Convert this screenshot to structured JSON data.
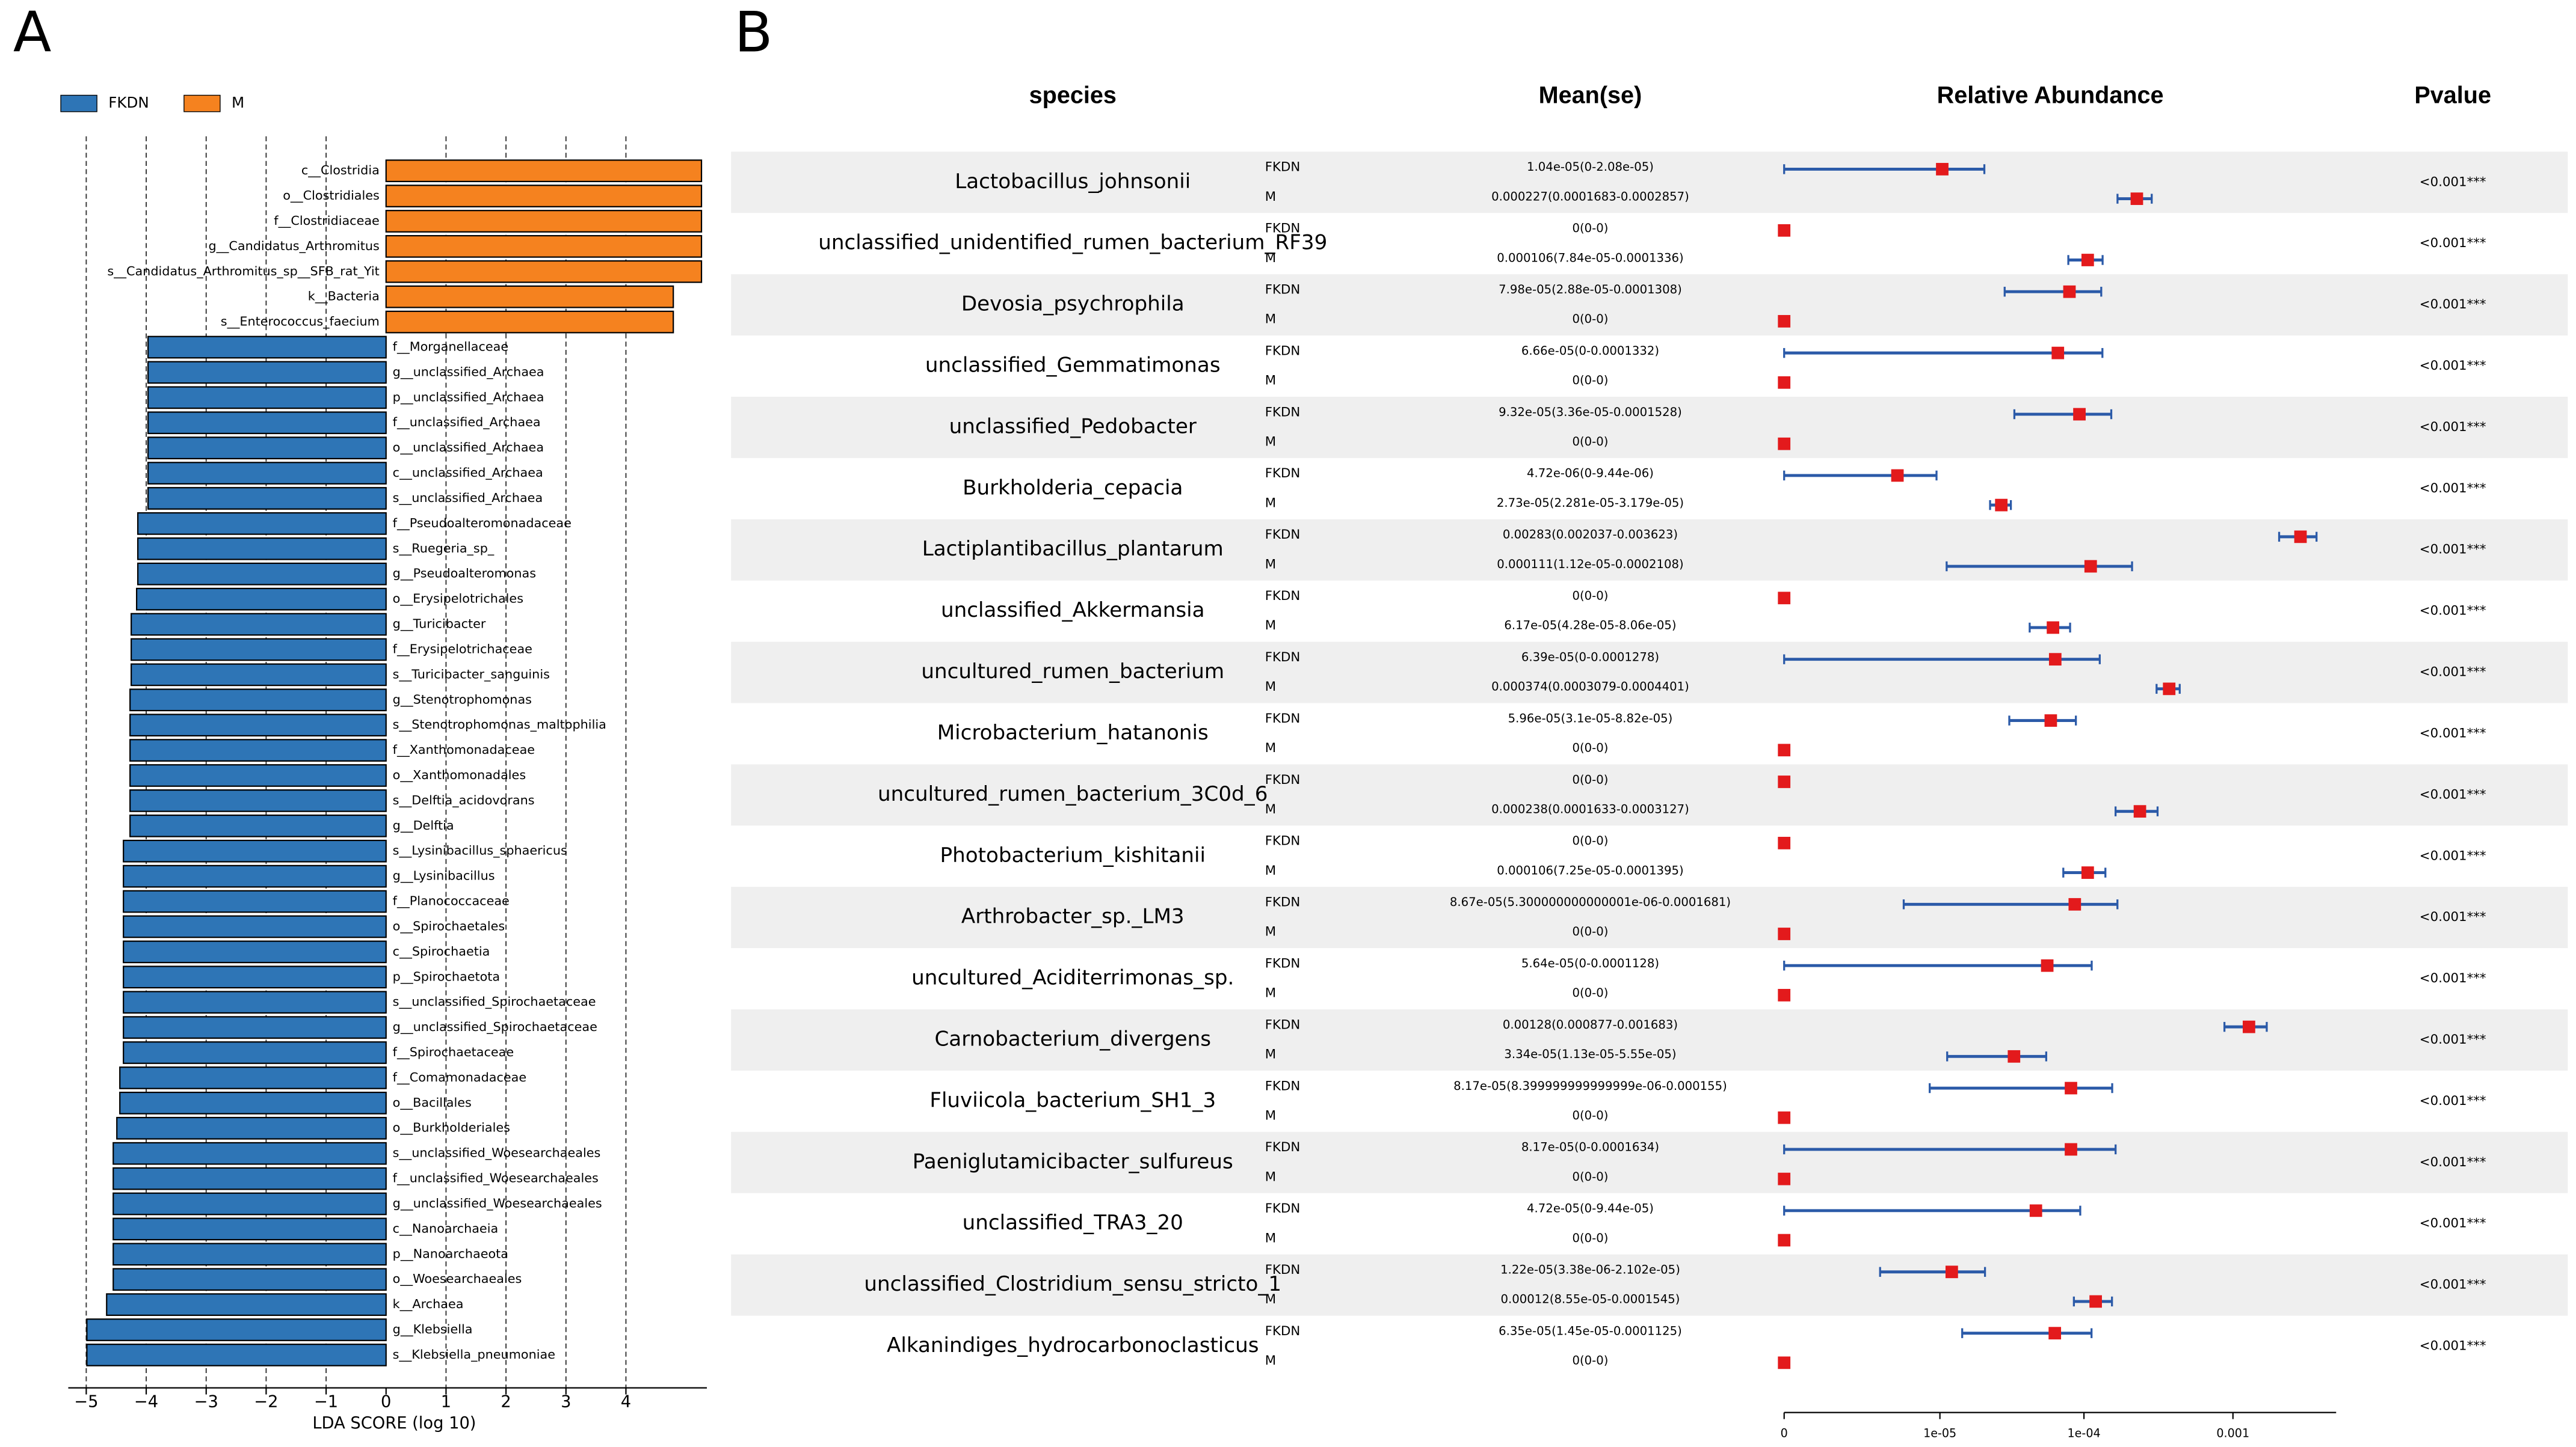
{
  "chart_data": [
    {
      "type": "bar",
      "panel": "A",
      "xlabel": "LDA SCORE (log 10)",
      "categories": [
        "c__Clostridia",
        "o__Clostridiales",
        "f__Clostridiaceae",
        "g__Candidatus_Arthromitus",
        "s__Candidatus_Arthromitus_sp__SFB_rat_Yit",
        "k__Bacteria",
        "s__Enterococcus_faecium",
        "f__Morganellaceae",
        "g__unclassified_Archaea",
        "p__unclassified_Archaea",
        "f__unclassified_Archaea",
        "o__unclassified_Archaea",
        "c__unclassified_Archaea",
        "s__unclassified_Archaea",
        "f__Pseudoalteromonadaceae",
        "s__Ruegeria_sp_",
        "g__Pseudoalteromonas",
        "o__Erysipelotrichales",
        "g__Turicibacter",
        "f__Erysipelotrichaceae",
        "s__Turicibacter_sanguinis",
        "g__Stenotrophomonas",
        "s__Stenotrophomonas_maltophilia",
        "f__Xanthomonadaceae",
        "o__Xanthomonadales",
        "s__Delftia_acidovorans",
        "g__Delftia",
        "s__Lysinibacillus_sphaericus",
        "g__Lysinibacillus",
        "f__Planococcaceae",
        "o__Spirochaetales",
        "c__Spirochaetia",
        "p__Spirochaetota",
        "s__unclassified_Spirochaetaceae",
        "g__unclassified_Spirochaetaceae",
        "f__Spirochaetaceae",
        "f__Comamonadaceae",
        "o__Bacillales",
        "o__Burkholderiales",
        "s__unclassified_Woesearchaeales",
        "f__unclassified_Woesearchaeales",
        "g__unclassified_Woesearchaeales",
        "c__Nanoarchaeia",
        "p__Nanoarchaeota",
        "o__Woesearchaeales",
        "k__Archaea",
        "g__Klebsiella",
        "s__Klebsiella_pneumoniae"
      ],
      "series": [
        {
          "name": "FKDN",
          "color": "#2e75b6",
          "values": [
            null,
            null,
            null,
            null,
            null,
            null,
            null,
            -3.97,
            -3.97,
            -3.97,
            -3.97,
            -3.97,
            -3.97,
            -3.97,
            -4.14,
            -4.14,
            -4.14,
            -4.16,
            -4.25,
            -4.25,
            -4.25,
            -4.27,
            -4.27,
            -4.27,
            -4.27,
            -4.27,
            -4.27,
            -4.38,
            -4.38,
            -4.38,
            -4.38,
            -4.38,
            -4.38,
            -4.38,
            -4.38,
            -4.38,
            -4.44,
            -4.44,
            -4.49,
            -4.55,
            -4.55,
            -4.55,
            -4.55,
            -4.55,
            -4.55,
            -4.66,
            -4.99,
            -4.99
          ]
        },
        {
          "name": "M",
          "color": "#f5821f",
          "values": [
            5.26,
            5.26,
            5.26,
            5.26,
            5.26,
            4.79,
            4.79,
            null,
            null,
            null,
            null,
            null,
            null,
            null,
            null,
            null,
            null,
            null,
            null,
            null,
            null,
            null,
            null,
            null,
            null,
            null,
            null,
            null,
            null,
            null,
            null,
            null,
            null,
            null,
            null,
            null,
            null,
            null,
            null,
            null,
            null,
            null,
            null,
            null,
            null,
            null,
            null,
            null
          ]
        }
      ],
      "xlim": [
        -5.3,
        5.35
      ],
      "xticks": [
        {
          "value": -5,
          "label": "−5"
        },
        {
          "value": -4,
          "label": "−4"
        },
        {
          "value": -3,
          "label": "−3"
        },
        {
          "value": -2,
          "label": "−2"
        },
        {
          "value": -1,
          "label": "−1"
        },
        0,
        1,
        2,
        3,
        4
      ],
      "grid": true,
      "legend": "upper left"
    },
    {
      "type": "forest",
      "panel": "B",
      "columns": [
        "species",
        "Mean(se)",
        "Relative Abundance",
        "Pvalue"
      ],
      "categories": [
        "Lactobacillus_johnsonii",
        "unclassified_unidentified_rumen_bacterium_RF39",
        "Devosia_psychrophila",
        "unclassified_Gemmatimonas",
        "unclassified_Pedobacter",
        "Burkholderia_cepacia",
        "Lactiplantibacillus_plantarum",
        "unclassified_Akkermansia",
        "uncultured_rumen_bacterium",
        "Microbacterium_hatanonis",
        "uncultured_rumen_bacterium_3C0d_6",
        "Photobacterium_kishitanii",
        "Arthrobacter_sp._LM3",
        "uncultured_Aciditerrimonas_sp.",
        "Carnobacterium_divergens",
        "Fluviicola_bacterium_SH1_3",
        "Paeniglutamicibacter_sulfureus",
        "unclassified_TRA3_20",
        "unclassified_Clostridium_sensu_stricto_1",
        "Alkanindiges_hydrocarbonoclasticus"
      ],
      "series": [
        {
          "name": "FKDN",
          "color": "#e31a1c",
          "values": [
            1.04e-05,
            0,
            7.98e-05,
            6.66e-05,
            9.32e-05,
            4.72e-06,
            0.00283,
            0,
            6.39e-05,
            5.96e-05,
            0,
            0,
            8.67e-05,
            5.64e-05,
            0.00128,
            8.17e-05,
            8.17e-05,
            4.72e-05,
            1.22e-05,
            6.35e-05
          ],
          "lower": [
            0,
            0,
            2.88e-05,
            0,
            3.36e-05,
            0,
            0.002037,
            0,
            0,
            3.1e-05,
            0,
            0,
            5.3e-06,
            0,
            0.000877,
            8.4e-06,
            0,
            0,
            3.38e-06,
            1.45e-05
          ],
          "upper": [
            2.08e-05,
            0,
            0.0001308,
            0.0001332,
            0.0001528,
            9.44e-06,
            0.003623,
            0,
            0.0001278,
            8.82e-05,
            0,
            0,
            0.0001681,
            0.0001128,
            0.001683,
            0.000155,
            0.0001634,
            9.44e-05,
            2.102e-05,
            0.0001125
          ],
          "value_labels": [
            "1.04e-05(0-2.08e-05)",
            "0(0-0)",
            "7.98e-05(2.88e-05-0.0001308)",
            "6.66e-05(0-0.0001332)",
            "9.32e-05(3.36e-05-0.0001528)",
            "4.72e-06(0-9.44e-06)",
            "0.00283(0.002037-0.003623)",
            "0(0-0)",
            "6.39e-05(0-0.0001278)",
            "5.96e-05(3.1e-05-8.82e-05)",
            "0(0-0)",
            "0(0-0)",
            "8.67e-05(5.300000000000001e-06-0.0001681)",
            "5.64e-05(0-0.0001128)",
            "0.00128(0.000877-0.001683)",
            "8.17e-05(8.399999999999999e-06-0.000155)",
            "8.17e-05(0-0.0001634)",
            "4.72e-05(0-9.44e-05)",
            "1.22e-05(3.38e-06-2.102e-05)",
            "6.35e-05(1.45e-05-0.0001125)"
          ]
        },
        {
          "name": "M",
          "color": "#e31a1c",
          "values": [
            0.000227,
            0.000106,
            0,
            0,
            0,
            2.73e-05,
            0.000111,
            6.17e-05,
            0.000374,
            0,
            0.000238,
            0.000106,
            0,
            0,
            3.34e-05,
            0,
            0,
            0,
            0.00012,
            0
          ],
          "lower": [
            0.0001683,
            7.84e-05,
            0,
            0,
            0,
            2.281e-05,
            1.12e-05,
            4.28e-05,
            0.0003079,
            0,
            0.0001633,
            7.25e-05,
            0,
            0,
            1.13e-05,
            0,
            0,
            0,
            8.55e-05,
            0
          ],
          "upper": [
            0.0002857,
            0.0001336,
            0,
            0,
            0,
            3.179e-05,
            0.0002108,
            8.06e-05,
            0.0004401,
            0,
            0.0003127,
            0.0001395,
            0,
            0,
            5.55e-05,
            0,
            0,
            0,
            0.0001545,
            0
          ],
          "value_labels": [
            "0.000227(0.0001683-0.0002857)",
            "0.000106(7.84e-05-0.0001336)",
            "0(0-0)",
            "0(0-0)",
            "0(0-0)",
            "2.73e-05(2.281e-05-3.179e-05)",
            "0.000111(1.12e-05-0.0002108)",
            "6.17e-05(4.28e-05-8.06e-05)",
            "0.000374(0.0003079-0.0004401)",
            "0(0-0)",
            "0.000238(0.0001633-0.0003127)",
            "0.000106(7.25e-05-0.0001395)",
            "0(0-0)",
            "0(0-0)",
            "3.34e-05(1.13e-05-5.55e-05)",
            "0(0-0)",
            "0(0-0)",
            "0(0-0)",
            "0.00012(8.55e-05-0.0001545)",
            "0(0-0)"
          ]
        }
      ],
      "pvalues": [
        "<0.001***",
        "<0.001***",
        "<0.001***",
        "<0.001***",
        "<0.001***",
        "<0.001***",
        "<0.001***",
        "<0.001***",
        "<0.001***",
        "<0.001***",
        "<0.001***",
        "<0.001***",
        "<0.001***",
        "<0.001***",
        "<0.001***",
        "<0.001***",
        "<0.001***",
        "<0.001***",
        "<0.001***",
        "<0.001***"
      ],
      "errorbar_color": "#2b5aa8",
      "row_shading": "#efefef",
      "xscale": "pseudo-log",
      "pseudo_log_offset": 1e-06,
      "xlim": [
        0,
        0.0049
      ],
      "xticks": [
        0,
        {
          "value": 1e-05,
          "label": "1e-05"
        },
        {
          "value": 0.0001,
          "label": "1e-04"
        },
        0.001
      ]
    }
  ]
}
